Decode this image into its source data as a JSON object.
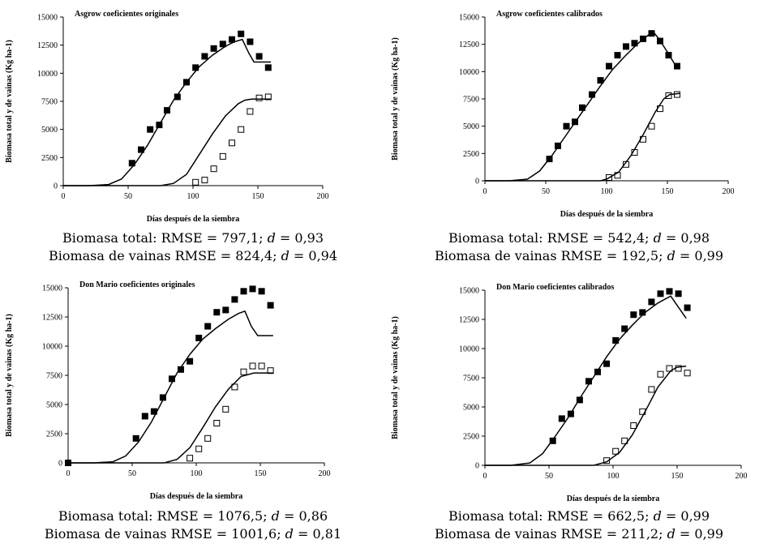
{
  "chart_data": [
    {
      "type": "scatter",
      "title": "Asgrow coeficientes originales",
      "xlabel": "Días después de la siembra",
      "ylabel": "Biomasa total y de vainas (Kg ha-1)",
      "xlim": [
        0,
        200
      ],
      "ylim": [
        0,
        15000
      ],
      "xticks": [
        "0",
        "50",
        "100",
        "150",
        "200"
      ],
      "yticks": [
        "0",
        "2500",
        "5000",
        "7500",
        "10000",
        "12500",
        "15000"
      ],
      "series": [
        {
          "kind": "observed-total",
          "marker": "filled-square",
          "points": [
            [
              53,
              2000
            ],
            [
              60,
              3200
            ],
            [
              67,
              5000
            ],
            [
              74,
              5400
            ],
            [
              80,
              6700
            ],
            [
              88,
              7900
            ],
            [
              95,
              9200
            ],
            [
              102,
              10500
            ],
            [
              109,
              11500
            ],
            [
              116,
              12200
            ],
            [
              123,
              12600
            ],
            [
              130,
              13000
            ],
            [
              137,
              13500
            ],
            [
              144,
              12800
            ],
            [
              151,
              11500
            ],
            [
              158,
              10500
            ]
          ]
        },
        {
          "kind": "observed-pods",
          "marker": "open-square",
          "points": [
            [
              102,
              300
            ],
            [
              109,
              500
            ],
            [
              116,
              1500
            ],
            [
              123,
              2600
            ],
            [
              130,
              3800
            ],
            [
              137,
              5000
            ],
            [
              144,
              6600
            ],
            [
              151,
              7800
            ],
            [
              158,
              7900
            ]
          ]
        },
        {
          "kind": "simulated-total",
          "marker": "line",
          "points": [
            [
              0,
              0
            ],
            [
              20,
              0
            ],
            [
              35,
              100
            ],
            [
              45,
              600
            ],
            [
              55,
              1900
            ],
            [
              65,
              3600
            ],
            [
              75,
              5600
            ],
            [
              85,
              7600
            ],
            [
              95,
              9200
            ],
            [
              105,
              10600
            ],
            [
              115,
              11600
            ],
            [
              125,
              12400
            ],
            [
              132,
              12800
            ],
            [
              138,
              13000
            ],
            [
              143,
              11800
            ],
            [
              147,
              11000
            ],
            [
              160,
              11000
            ]
          ]
        },
        {
          "kind": "simulated-pods",
          "marker": "line",
          "points": [
            [
              0,
              0
            ],
            [
              75,
              0
            ],
            [
              85,
              200
            ],
            [
              95,
              1000
            ],
            [
              105,
              2800
            ],
            [
              115,
              4600
            ],
            [
              125,
              6200
            ],
            [
              135,
              7300
            ],
            [
              140,
              7600
            ],
            [
              145,
              7700
            ],
            [
              160,
              7700
            ]
          ]
        }
      ]
    },
    {
      "type": "scatter",
      "title": "Asgrow coeficientes calibrados",
      "xlabel": "Días después de la siembra",
      "ylabel": "Biomasa total y de vainas (Kg ha-1)",
      "xlim": [
        0,
        200
      ],
      "ylim": [
        0,
        15000
      ],
      "xticks": [
        "0",
        "50",
        "100",
        "150",
        "200"
      ],
      "yticks": [
        "0",
        "2500",
        "5000",
        "7500",
        "10000",
        "12500",
        "15000"
      ],
      "series": [
        {
          "kind": "observed-total",
          "marker": "filled-square",
          "points": [
            [
              53,
              2000
            ],
            [
              60,
              3200
            ],
            [
              67,
              5000
            ],
            [
              74,
              5400
            ],
            [
              80,
              6700
            ],
            [
              88,
              7900
            ],
            [
              95,
              9200
            ],
            [
              102,
              10500
            ],
            [
              109,
              11500
            ],
            [
              116,
              12300
            ],
            [
              123,
              12600
            ],
            [
              130,
              13000
            ],
            [
              137,
              13500
            ],
            [
              144,
              12800
            ],
            [
              151,
              11500
            ],
            [
              158,
              10500
            ]
          ]
        },
        {
          "kind": "observed-pods",
          "marker": "open-square",
          "points": [
            [
              102,
              300
            ],
            [
              109,
              500
            ],
            [
              116,
              1500
            ],
            [
              123,
              2600
            ],
            [
              130,
              3800
            ],
            [
              137,
              5000
            ],
            [
              144,
              6600
            ],
            [
              151,
              7800
            ],
            [
              158,
              7900
            ]
          ]
        },
        {
          "kind": "simulated-total",
          "marker": "line",
          "points": [
            [
              0,
              0
            ],
            [
              20,
              0
            ],
            [
              35,
              150
            ],
            [
              45,
              900
            ],
            [
              55,
              2300
            ],
            [
              65,
              3900
            ],
            [
              75,
              5500
            ],
            [
              85,
              7100
            ],
            [
              95,
              8700
            ],
            [
              105,
              10200
            ],
            [
              115,
              11400
            ],
            [
              125,
              12500
            ],
            [
              135,
              13400
            ],
            [
              138,
              13700
            ],
            [
              143,
              13000
            ],
            [
              150,
              11800
            ],
            [
              157,
              10500
            ]
          ]
        },
        {
          "kind": "simulated-pods",
          "marker": "line",
          "points": [
            [
              0,
              0
            ],
            [
              95,
              0
            ],
            [
              100,
              150
            ],
            [
              110,
              800
            ],
            [
              120,
              2300
            ],
            [
              130,
              4200
            ],
            [
              140,
              6300
            ],
            [
              147,
              7500
            ],
            [
              152,
              7900
            ],
            [
              160,
              8000
            ]
          ]
        }
      ]
    },
    {
      "type": "scatter",
      "title": "Don Mario coeficientes originales",
      "xlabel": "Días después de la siembra",
      "ylabel": "Biomasa total y de vainas (Kg ha-1)",
      "xlim": [
        0,
        200
      ],
      "ylim": [
        0,
        15000
      ],
      "xticks": [
        "0",
        "50",
        "100",
        "150",
        "200"
      ],
      "yticks": [
        "0",
        "2500",
        "5000",
        "7500",
        "10000",
        "12500",
        "15000"
      ],
      "series": [
        {
          "kind": "observed-total",
          "marker": "filled-square",
          "points": [
            [
              0,
              0
            ],
            [
              53,
              2100
            ],
            [
              60,
              4000
            ],
            [
              67,
              4400
            ],
            [
              74,
              5600
            ],
            [
              81,
              7200
            ],
            [
              88,
              8000
            ],
            [
              95,
              8700
            ],
            [
              102,
              10700
            ],
            [
              109,
              11700
            ],
            [
              116,
              12900
            ],
            [
              123,
              13100
            ],
            [
              130,
              14000
            ],
            [
              137,
              14700
            ],
            [
              144,
              14900
            ],
            [
              151,
              14700
            ],
            [
              158,
              13500
            ]
          ]
        },
        {
          "kind": "observed-pods",
          "marker": "open-square",
          "points": [
            [
              95,
              400
            ],
            [
              102,
              1200
            ],
            [
              109,
              2100
            ],
            [
              116,
              3400
            ],
            [
              123,
              4600
            ],
            [
              130,
              6500
            ],
            [
              137,
              7800
            ],
            [
              144,
              8300
            ],
            [
              151,
              8300
            ],
            [
              158,
              7900
            ]
          ]
        },
        {
          "kind": "simulated-total",
          "marker": "line",
          "points": [
            [
              0,
              0
            ],
            [
              20,
              0
            ],
            [
              35,
              100
            ],
            [
              45,
              600
            ],
            [
              55,
              1800
            ],
            [
              65,
              3500
            ],
            [
              75,
              5600
            ],
            [
              85,
              7700
            ],
            [
              95,
              9300
            ],
            [
              105,
              10600
            ],
            [
              115,
              11500
            ],
            [
              125,
              12300
            ],
            [
              133,
              12800
            ],
            [
              138,
              13000
            ],
            [
              143,
              11700
            ],
            [
              148,
              10900
            ],
            [
              160,
              10900
            ]
          ]
        },
        {
          "kind": "simulated-pods",
          "marker": "line",
          "points": [
            [
              0,
              0
            ],
            [
              75,
              0
            ],
            [
              85,
              300
            ],
            [
              95,
              1300
            ],
            [
              105,
              3000
            ],
            [
              115,
              4800
            ],
            [
              125,
              6300
            ],
            [
              135,
              7400
            ],
            [
              145,
              7700
            ],
            [
              160,
              7700
            ]
          ]
        }
      ]
    },
    {
      "type": "scatter",
      "title": "Don Mario coeficientes calibrados",
      "xlabel": "Días después de la siembra",
      "ylabel": "Biomasa total y de vainas (Kg ha-1)",
      "xlim": [
        0,
        200
      ],
      "ylim": [
        0,
        15000
      ],
      "xticks": [
        "0",
        "50",
        "100",
        "150",
        "200"
      ],
      "yticks": [
        "0",
        "2500",
        "5000",
        "7500",
        "10000",
        "12500",
        "15000"
      ],
      "series": [
        {
          "kind": "observed-total",
          "marker": "filled-square",
          "points": [
            [
              53,
              2100
            ],
            [
              60,
              4000
            ],
            [
              67,
              4400
            ],
            [
              74,
              5600
            ],
            [
              81,
              7200
            ],
            [
              88,
              8000
            ],
            [
              95,
              8700
            ],
            [
              102,
              10700
            ],
            [
              109,
              11700
            ],
            [
              116,
              12900
            ],
            [
              123,
              13100
            ],
            [
              130,
              14000
            ],
            [
              137,
              14700
            ],
            [
              144,
              14900
            ],
            [
              151,
              14700
            ],
            [
              158,
              13500
            ]
          ]
        },
        {
          "kind": "observed-pods",
          "marker": "open-square",
          "points": [
            [
              95,
              400
            ],
            [
              102,
              1200
            ],
            [
              109,
              2100
            ],
            [
              116,
              3400
            ],
            [
              123,
              4600
            ],
            [
              130,
              6500
            ],
            [
              137,
              7800
            ],
            [
              144,
              8300
            ],
            [
              151,
              8300
            ],
            [
              158,
              7900
            ]
          ]
        },
        {
          "kind": "simulated-total",
          "marker": "line",
          "points": [
            [
              0,
              0
            ],
            [
              20,
              0
            ],
            [
              35,
              200
            ],
            [
              45,
              1000
            ],
            [
              55,
              2500
            ],
            [
              65,
              4100
            ],
            [
              75,
              5900
            ],
            [
              85,
              7600
            ],
            [
              95,
              9300
            ],
            [
              105,
              10800
            ],
            [
              115,
              12000
            ],
            [
              125,
              13100
            ],
            [
              135,
              13900
            ],
            [
              145,
              14500
            ],
            [
              150,
              13700
            ],
            [
              157,
              12600
            ]
          ]
        },
        {
          "kind": "simulated-pods",
          "marker": "line",
          "points": [
            [
              0,
              0
            ],
            [
              85,
              0
            ],
            [
              95,
              300
            ],
            [
              105,
              1100
            ],
            [
              115,
              2600
            ],
            [
              125,
              4600
            ],
            [
              135,
              6700
            ],
            [
              145,
              8100
            ],
            [
              150,
              8400
            ],
            [
              157,
              8500
            ]
          ]
        }
      ]
    }
  ],
  "captions": [
    {
      "line1": {
        "prefix": "Biomasa total: RMSE = 797,1;  ",
        "d": "d",
        "suffix": " = 0,93"
      },
      "line2": {
        "prefix": "Biomasa de vainas RMSE = 824,4;  ",
        "d": "d",
        "suffix": " = 0,94"
      }
    },
    {
      "line1": {
        "prefix": "Biomasa total: RMSE = 542,4;  ",
        "d": "d",
        "suffix": " = 0,98"
      },
      "line2": {
        "prefix": "Biomasa de vainas RMSE = 192,5;  ",
        "d": "d",
        "suffix": " = 0,99"
      }
    },
    {
      "line1": {
        "prefix": "Biomasa total: RMSE = 1076,5;  ",
        "d": "d",
        "suffix": " = 0,86"
      },
      "line2": {
        "prefix": "Biomasa de vainas RMSE = 1001,6;  ",
        "d": "d",
        "suffix": " = 0,81"
      }
    },
    {
      "line1": {
        "prefix": "Biomasa total: RMSE = 662,5;  ",
        "d": "d",
        "suffix": " = 0,99"
      },
      "line2": {
        "prefix": "Biomasa de vainas RMSE = 211,2;  ",
        "d": "d",
        "suffix": " = 0,99"
      }
    }
  ]
}
